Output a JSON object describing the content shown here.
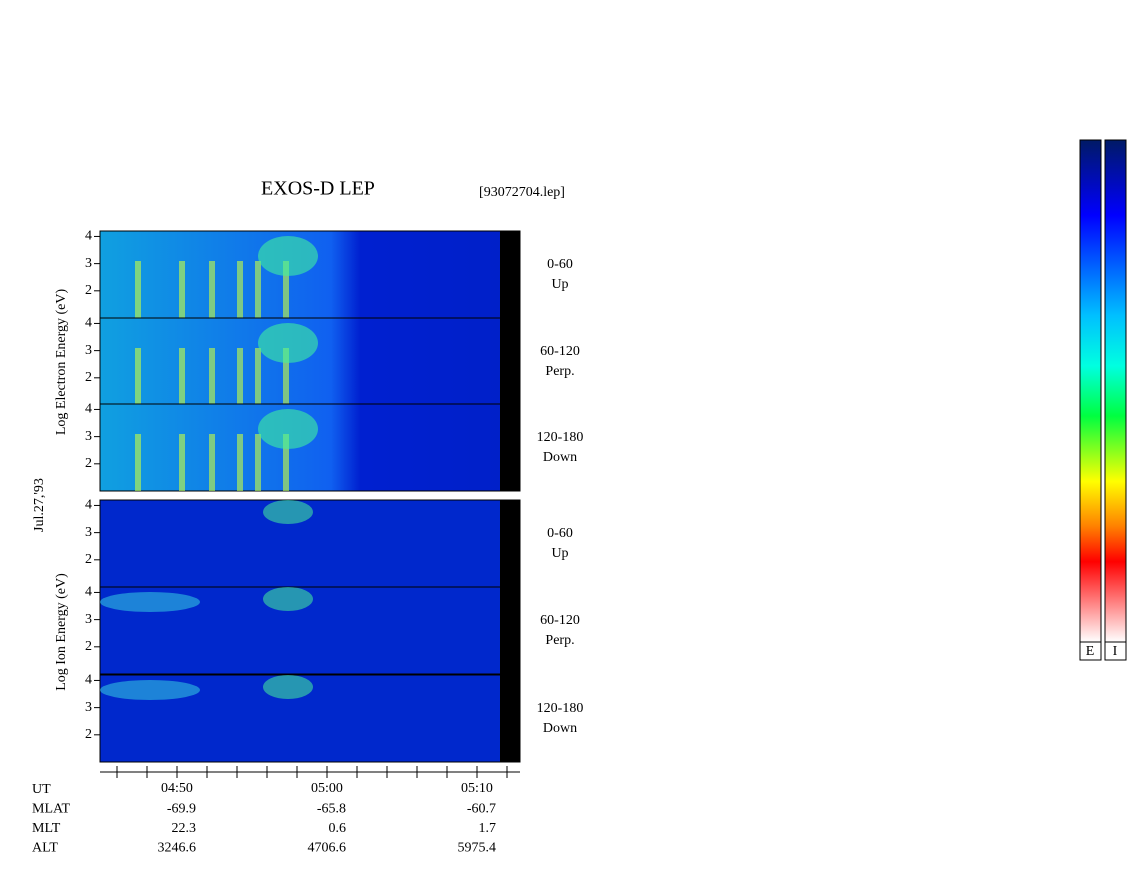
{
  "title": "EXOS-D LEP",
  "file": "[93072704.lep]",
  "date": "Jul.27,'93",
  "electron_axis_label": "Log  Electron  Energy (eV)",
  "ion_axis_label": "Log  Ion  Energy (eV)",
  "ylim": [
    1,
    4.2
  ],
  "yticks": [
    2,
    3,
    4
  ],
  "panels": [
    {
      "angle": "0-60",
      "direction": "Up"
    },
    {
      "angle": "60-120",
      "direction": "Perp."
    },
    {
      "angle": "120-180",
      "direction": "Down"
    }
  ],
  "x_ticks": [
    "04:50",
    "05:00",
    "05:10"
  ],
  "footer": [
    {
      "label": "UT"
    },
    {
      "label": "MLAT",
      "values": [
        "-69.9",
        "-65.8",
        "-60.7"
      ]
    },
    {
      "label": "MLT",
      "values": [
        "22.3",
        "0.6",
        "1.7"
      ]
    },
    {
      "label": "ALT",
      "values": [
        "3246.6",
        "4706.6",
        "5975.4"
      ]
    }
  ],
  "colorbar_labels": [
    "E",
    "I"
  ]
}
